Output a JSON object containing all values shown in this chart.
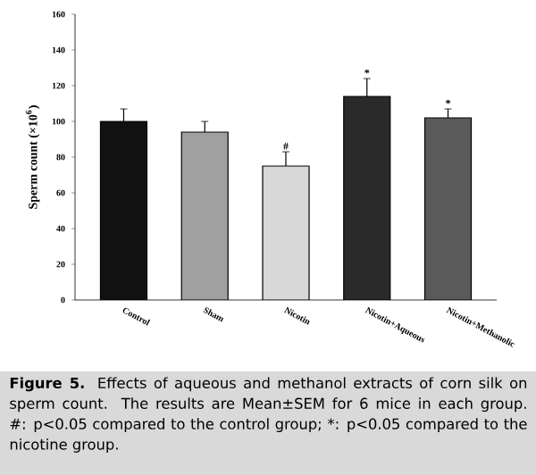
{
  "chart_data": {
    "type": "bar",
    "ylabel": "Sperm count (×10$^{6}$)",
    "categories": [
      "Control",
      "Sham",
      "Nicotin",
      "Nicotin+Aqueous",
      "Nicotin+Methanolic"
    ],
    "values": [
      100,
      94,
      75,
      114,
      102
    ],
    "errors": [
      7,
      6,
      8,
      10,
      5
    ],
    "colors": [
      "#111111",
      "#a0a0a0",
      "#d8d8d8",
      "#2a2a2a",
      "#5a5a5a"
    ],
    "ylim": [
      0,
      160
    ],
    "yticks": [
      0,
      20,
      40,
      60,
      80,
      100,
      120,
      140,
      160
    ],
    "grid": false,
    "annotations": [
      {
        "text": "#",
        "x": "Nicotin",
        "y": 83
      },
      {
        "text": "*",
        "x": "Nicotin+Aqueous",
        "y": 124
      },
      {
        "text": "*",
        "x": "Nicotin+Methanolic",
        "y": 107
      },
      "Figure 5.",
      "Effects of aqueous and methanol extracts of corn silk on sperm count. The results are Mean±SEM for 6 mice in each group. #: p<0.05 compared to the control group; *: p<0.05 compared to the nicotine group."
    ]
  }
}
